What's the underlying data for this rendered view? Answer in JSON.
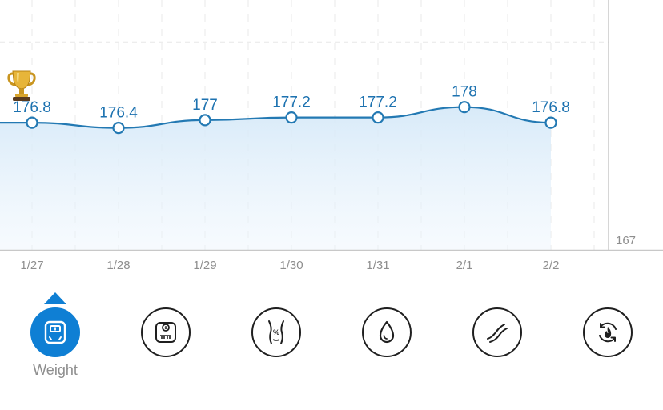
{
  "chart_data": {
    "type": "line",
    "categories": [
      "1/27",
      "1/28",
      "1/29",
      "1/30",
      "1/31",
      "2/1",
      "2/2"
    ],
    "series": [
      {
        "values": [
          176.8,
          176.4,
          177,
          177.2,
          177.2,
          178,
          176.8
        ]
      }
    ],
    "value_labels": [
      "176.8",
      "176.4",
      "177",
      "177.2",
      "177.2",
      "178",
      "176.8"
    ],
    "y_axis_min_label": "167",
    "ylim": [
      167,
      186
    ],
    "goal_line": 183,
    "grid": "vertical-dashed",
    "line_color": "#2379b3",
    "goal_line_color": "#cccccc"
  },
  "metrics": {
    "selected_label": "Weight",
    "items": [
      {
        "icon": "weight-scale-icon"
      },
      {
        "icon": "bmr-scale-icon"
      },
      {
        "icon": "body-fat-icon"
      },
      {
        "icon": "water-drop-icon"
      },
      {
        "icon": "muscle-icon"
      },
      {
        "icon": "metabolism-icon"
      }
    ],
    "accent_color": "#0f7fd4"
  }
}
